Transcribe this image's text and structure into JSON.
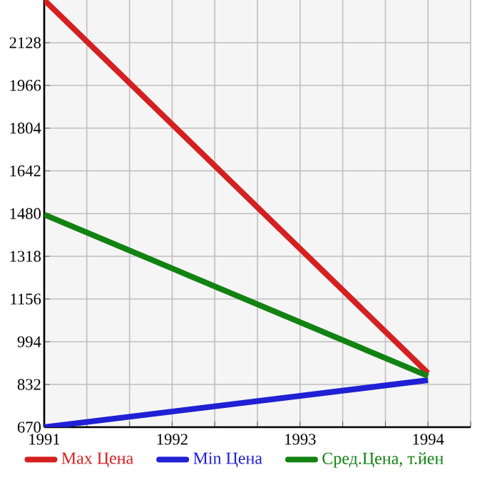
{
  "chart_data": {
    "type": "line",
    "x": [
      1991,
      1994
    ],
    "series": [
      {
        "name": "Max Цена",
        "color": "#d42020",
        "values": [
          2290,
          875
        ]
      },
      {
        "name": "Min Цена",
        "color": "#2020d4",
        "values": [
          670,
          848
        ]
      },
      {
        "name": "Сред.Цена, т.йен",
        "color": "#128212",
        "values": [
          1476,
          864
        ]
      }
    ],
    "xlim": [
      1991,
      1994.333
    ],
    "xticks": [
      1991,
      {
        "value": 1991.333,
        "label": null
      },
      {
        "value": 1991.667,
        "label": null
      },
      1992,
      {
        "value": 1992.333,
        "label": null
      },
      {
        "value": 1992.667,
        "label": null
      },
      1993,
      {
        "value": 1993.333,
        "label": null
      },
      {
        "value": 1993.667,
        "label": null
      },
      1994,
      {
        "value": 1994.333,
        "label": null
      }
    ],
    "ylim": [
      670,
      2290
    ],
    "yticks": [
      670,
      832,
      994,
      1156,
      1318,
      1480,
      1642,
      1804,
      1966,
      2128
    ],
    "grid": true,
    "legend": "bottom"
  }
}
